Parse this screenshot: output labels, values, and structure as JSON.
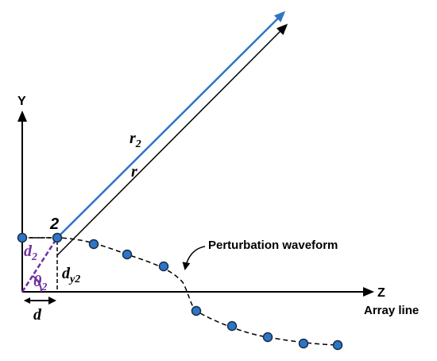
{
  "axes": {
    "y_label": "Y",
    "z_label": "Z",
    "array_line": "Array line"
  },
  "annotation": "Perturbation waveform",
  "labels": {
    "r2": {
      "main": "r",
      "sub": "2"
    },
    "r": "r",
    "element": "2",
    "d2": {
      "main": "d",
      "sub": "2"
    },
    "theta2": {
      "main": "θ",
      "sub": "2"
    },
    "dy2": {
      "main": "d",
      "sub": "y2"
    },
    "d": "d"
  }
}
